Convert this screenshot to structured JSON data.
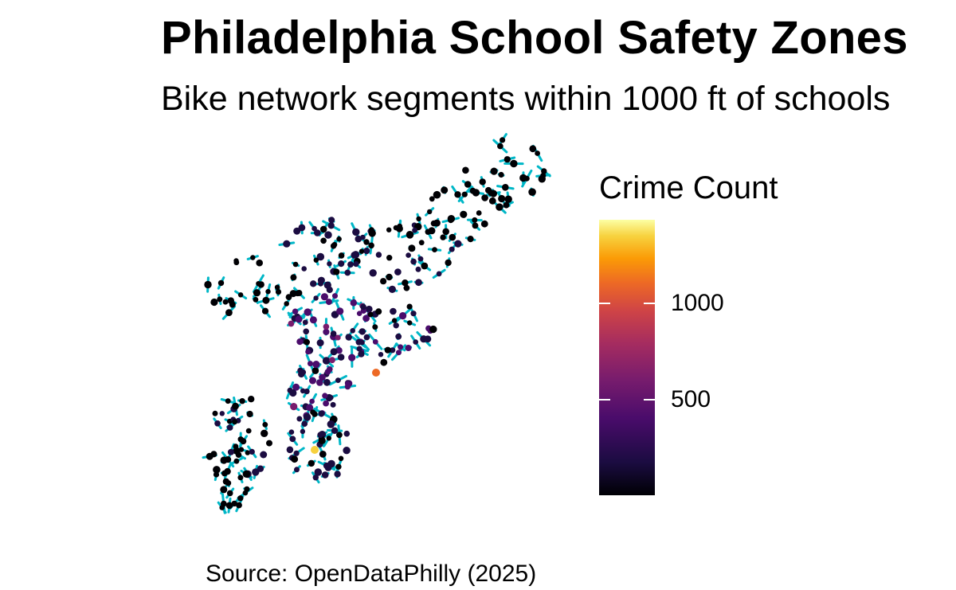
{
  "title": "Philadelphia School Safety Zones",
  "subtitle": "Bike network segments within 1000 ft of schools",
  "caption": "Source: OpenDataPhilly (2025)",
  "legend": {
    "title": "Crime Count",
    "ticks": [
      {
        "label": "1000",
        "value": 1000
      },
      {
        "label": "500",
        "value": 500
      }
    ],
    "scale_min": 0,
    "scale_max": 1430,
    "palette": "inferno"
  },
  "colors": {
    "bike_segment": "#00b7c7",
    "school_low": "#000004",
    "school_high": "#fcffa4"
  }
}
